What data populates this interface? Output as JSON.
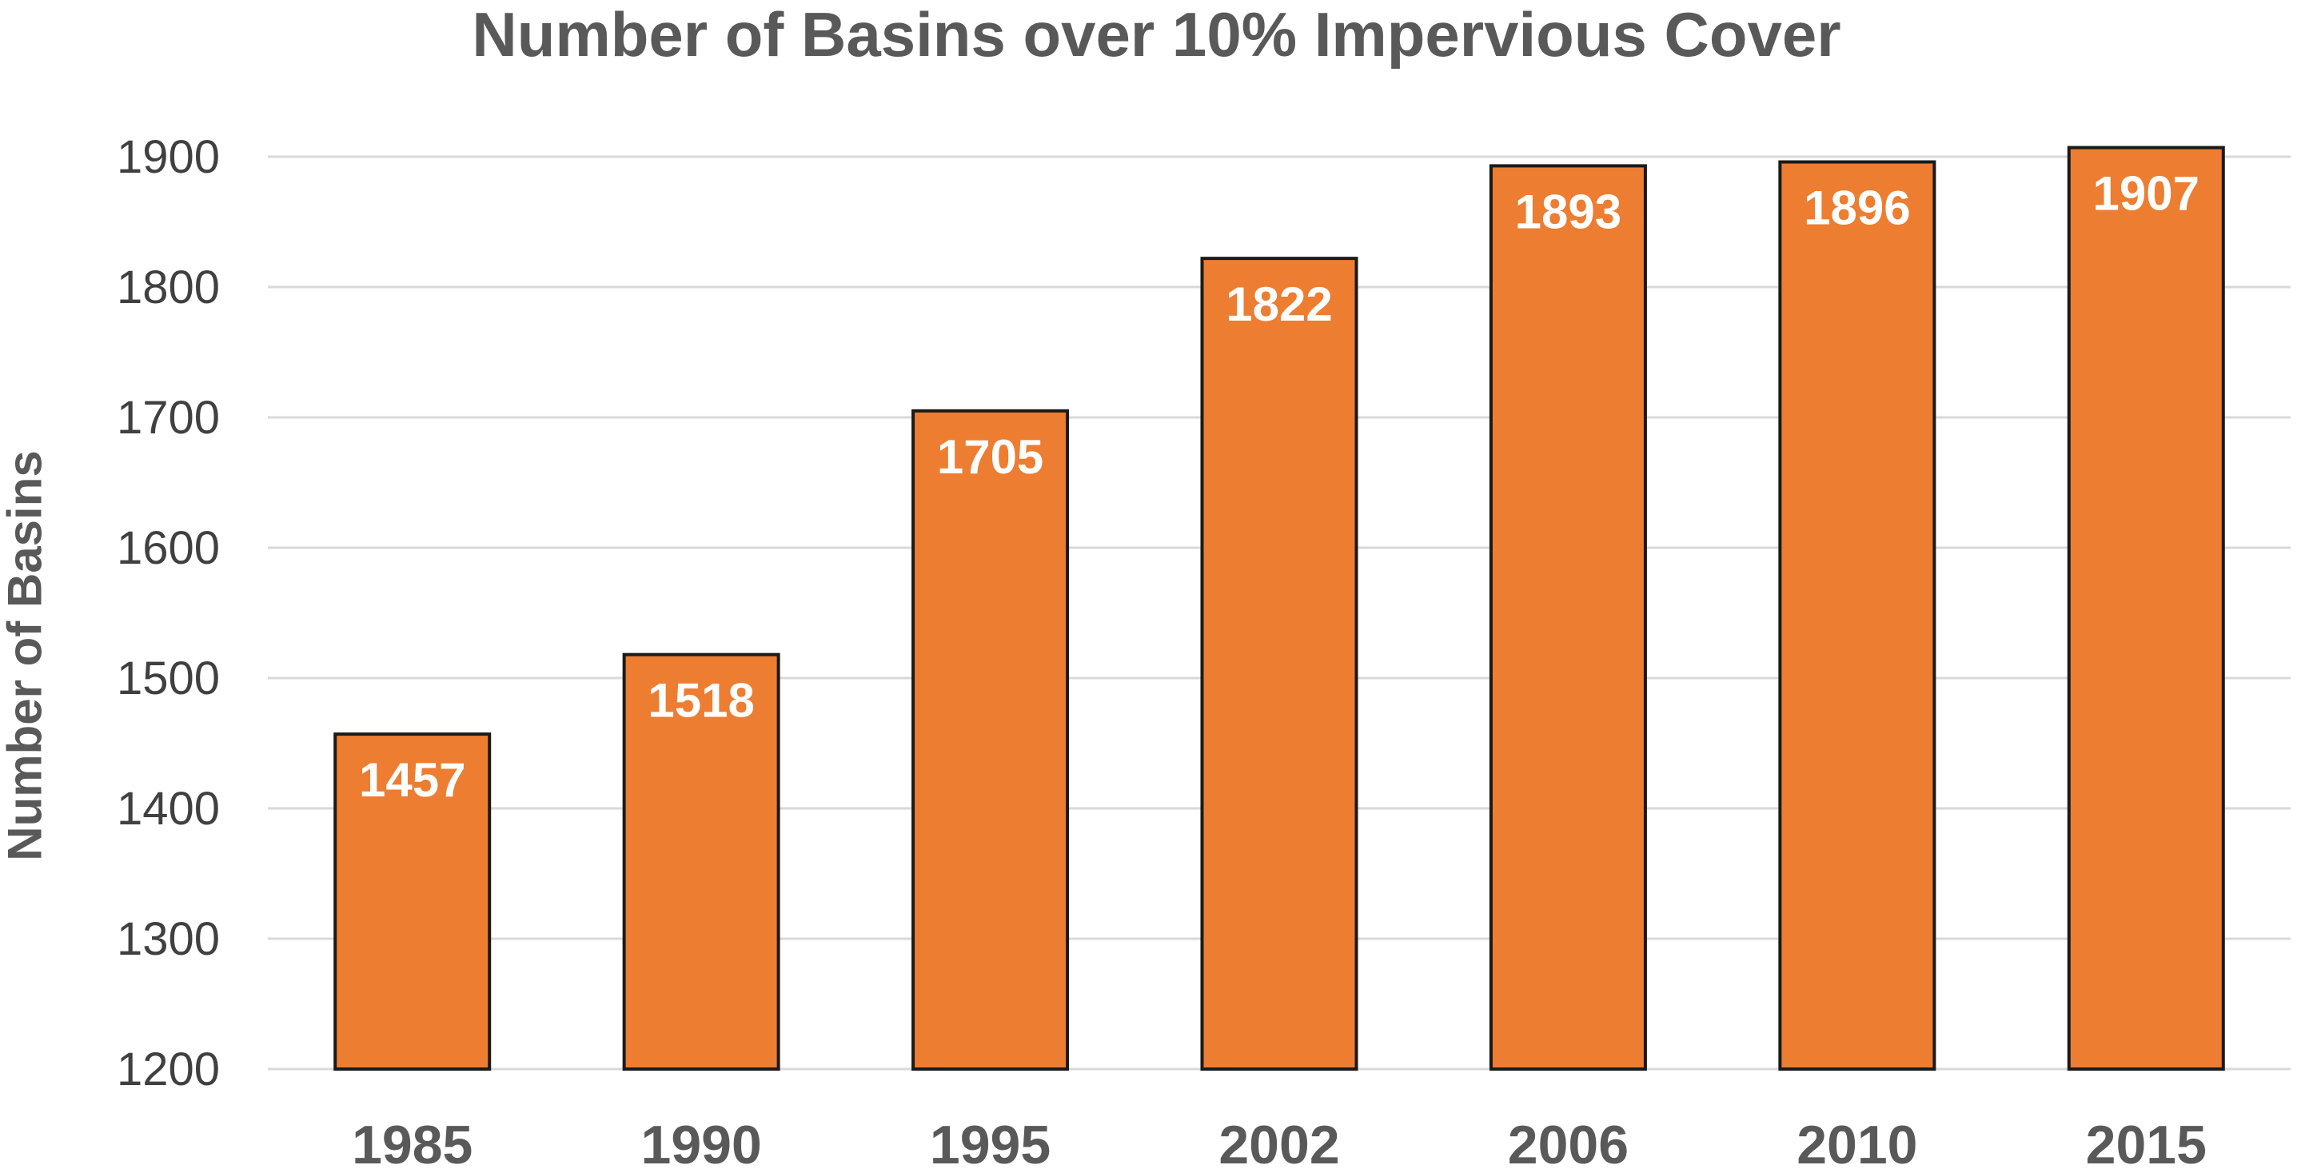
{
  "chart_data": {
    "type": "bar",
    "title": "Number of Basins over 10% Impervious Cover",
    "xlabel": "",
    "ylabel": "Number of Basins",
    "categories": [
      "1985",
      "1990",
      "1995",
      "2002",
      "2006",
      "2010",
      "2015"
    ],
    "values": [
      1457,
      1518,
      1705,
      1822,
      1893,
      1896,
      1907
    ],
    "ylim": [
      1200,
      1900
    ],
    "yticks": [
      1200,
      1300,
      1400,
      1500,
      1600,
      1700,
      1800,
      1900
    ],
    "grid": true,
    "legend": "none",
    "colors": {
      "bar": "#ED7D31",
      "bar_outline": "#1a1a1a",
      "data_label": "#ffffff",
      "grid": "#d9d9d9",
      "title": "#595959",
      "axis_text": "#404040"
    }
  }
}
